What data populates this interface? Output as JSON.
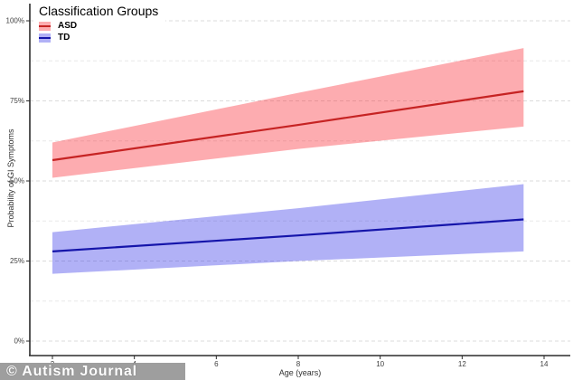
{
  "legend": {
    "title": "Classification Groups",
    "entries": [
      {
        "label": "ASD",
        "line_color": "#c62323",
        "band_color": "#FA1923",
        "band_opacity": 0.36
      },
      {
        "label": "TD",
        "line_color": "#1515aa",
        "band_color": "#2828E6",
        "band_opacity": 0.36
      }
    ]
  },
  "watermark": {
    "text": "© Autism Journal"
  },
  "chart_data": {
    "type": "line",
    "title": "Classification Groups",
    "xlabel": "Age (years)",
    "ylabel": "Probability of GI Symptoms",
    "xlim": [
      1.45,
      14.65
    ],
    "ylim": [
      0,
      100
    ],
    "x_ticks": [
      2,
      4,
      6,
      8,
      10,
      12,
      14
    ],
    "x_tick_labels": [
      "2",
      "4",
      "6",
      "8",
      "10",
      "12",
      "14"
    ],
    "y_ticks": [
      0,
      25,
      50,
      75,
      100
    ],
    "y_tick_labels": [
      "0%",
      "25%",
      "50%",
      "75%",
      "100%"
    ],
    "y_minor_ticks": [
      12.5,
      37.5,
      62.5,
      87.5
    ],
    "grid": "horizontal dashed, major and minor",
    "legend_position": "top-left inside panel",
    "series": [
      {
        "name": "ASD",
        "line_color": "#c62323",
        "band_color": "#FA1923",
        "band_opacity": 0.36,
        "points": [
          {
            "age": 2,
            "p": 56.5,
            "lo": 51,
            "hi": 62
          },
          {
            "age": 8,
            "p": 67.5,
            "lo": 60,
            "hi": 77.5
          },
          {
            "age": 13.5,
            "p": 78,
            "lo": 67,
            "hi": 91.5
          }
        ]
      },
      {
        "name": "TD",
        "line_color": "#1515aa",
        "band_color": "#2828E6",
        "band_opacity": 0.36,
        "points": [
          {
            "age": 2,
            "p": 28,
            "lo": 21,
            "hi": 34
          },
          {
            "age": 8,
            "p": 33,
            "lo": 25,
            "hi": 41.5
          },
          {
            "age": 13.5,
            "p": 38,
            "lo": 28,
            "hi": 49
          }
        ]
      }
    ]
  }
}
